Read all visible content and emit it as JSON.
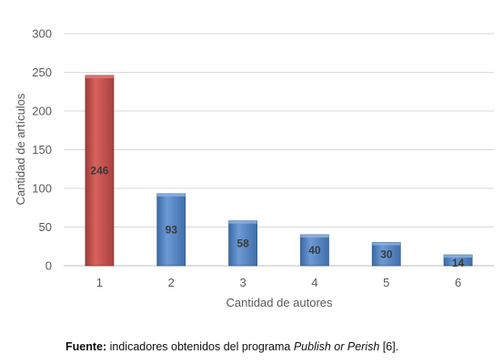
{
  "chart_data": {
    "type": "bar",
    "categories": [
      "1",
      "2",
      "3",
      "4",
      "5",
      "6"
    ],
    "values": [
      246,
      93,
      58,
      40,
      30,
      14
    ],
    "data_labels": [
      "246",
      "93",
      "58",
      "40",
      "30",
      "14"
    ],
    "xlabel": "Cantidad de autores",
    "ylabel": "Cantidad de artículos",
    "ylim": [
      0,
      300
    ],
    "yticks": [
      0,
      50,
      100,
      150,
      200,
      250,
      300
    ],
    "grid": true,
    "colors": [
      "#c0504d",
      "#4f81bd",
      "#4f81bd",
      "#4f81bd",
      "#4f81bd",
      "#4f81bd"
    ]
  },
  "source": {
    "label": "Fuente:",
    "text_before": " indicadores obtenidos del programa ",
    "program": "Publish or Perish",
    "text_after": " [6]."
  }
}
